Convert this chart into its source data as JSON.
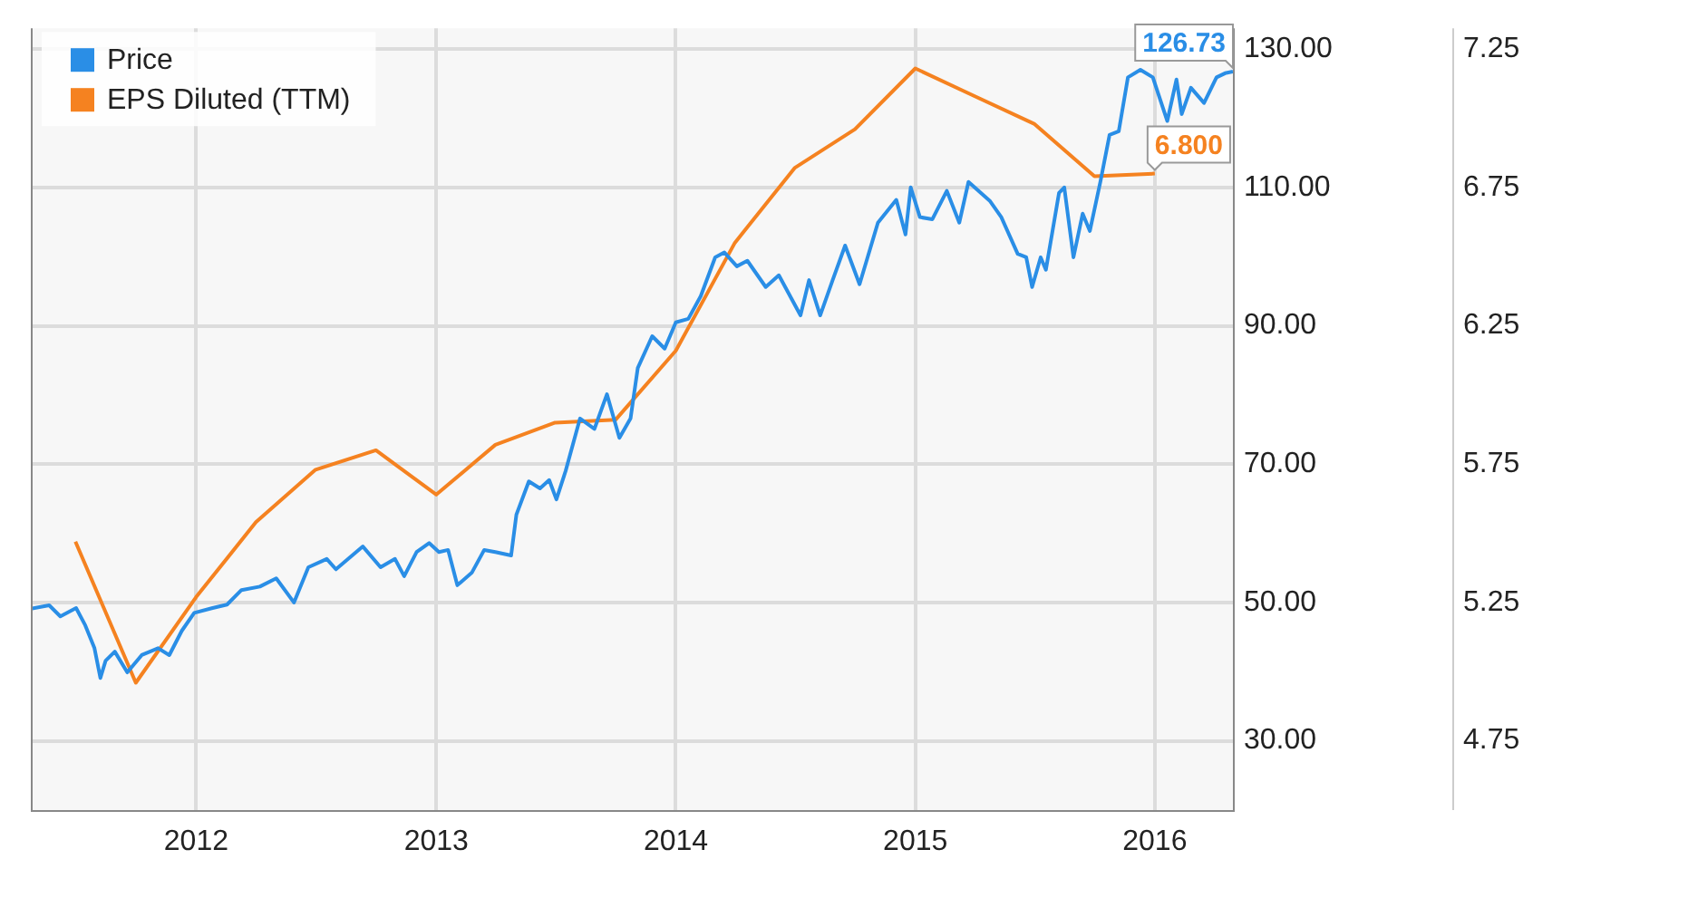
{
  "chart_data": {
    "type": "line",
    "xlim": [
      "2011-04-24",
      "2016-04-29"
    ],
    "xticks": [
      "2012",
      "2013",
      "2014",
      "2015",
      "2016"
    ],
    "ylim": [
      20,
      133
    ],
    "yticks": [
      {
        "value": 30,
        "label": "30.00"
      },
      {
        "value": 50,
        "label": "50.00"
      },
      {
        "value": 70,
        "label": "70.00"
      },
      {
        "value": 90,
        "label": "90.00"
      },
      {
        "value": 110,
        "label": "110.00"
      },
      {
        "value": 130,
        "label": "130.00"
      }
    ],
    "y2lim": [
      4.5,
      7.325
    ],
    "y2ticks": [
      4.75,
      5.25,
      5.75,
      6.25,
      6.75,
      7.25
    ],
    "grid": true,
    "legend": "top left",
    "marker": "none",
    "line_style": "solid",
    "series": [
      {
        "name": "Price",
        "color": "#2a8ee6",
        "x": [
          "2011-04-24",
          "2011-05-22",
          "2011-06-08",
          "2011-07-02",
          "2011-07-16",
          "2011-07-30",
          "2011-08-08",
          "2011-08-16",
          "2011-08-30",
          "2011-09-18",
          "2011-10-10",
          "2011-11-04",
          "2011-11-21",
          "2011-12-10",
          "2011-12-29",
          "2012-01-26",
          "2012-02-17",
          "2012-03-10",
          "2012-04-07",
          "2012-05-02",
          "2012-05-29",
          "2012-06-20",
          "2012-07-18",
          "2012-08-01",
          "2012-09-11",
          "2012-10-08",
          "2012-10-30",
          "2012-11-13",
          "2012-12-02",
          "2012-12-21",
          "2013-01-05",
          "2013-01-19",
          "2013-02-02",
          "2013-02-24",
          "2013-03-15",
          "2013-04-01",
          "2013-04-25",
          "2013-05-03",
          "2013-05-22",
          "2013-06-08",
          "2013-06-22",
          "2013-07-03",
          "2013-07-17",
          "2013-08-08",
          "2013-08-30",
          "2013-09-18",
          "2013-10-07",
          "2013-10-24",
          "2013-11-04",
          "2013-11-26",
          "2013-12-15",
          "2014-01-01",
          "2014-01-20",
          "2014-02-08",
          "2014-03-02",
          "2014-03-16",
          "2014-04-04",
          "2014-04-20",
          "2014-05-18",
          "2014-06-07",
          "2014-07-10",
          "2014-07-23",
          "2014-08-09",
          "2014-08-28",
          "2014-09-16",
          "2014-10-08",
          "2014-11-05",
          "2014-12-03",
          "2014-12-17",
          "2014-12-25",
          "2015-01-08",
          "2015-01-27",
          "2015-02-18",
          "2015-03-09",
          "2015-03-23",
          "2015-04-25",
          "2015-05-12",
          "2015-06-06",
          "2015-06-19",
          "2015-06-28",
          "2015-07-11",
          "2015-07-19",
          "2015-08-08",
          "2015-08-16",
          "2015-08-30",
          "2015-09-13",
          "2015-09-24",
          "2015-10-10",
          "2015-10-24",
          "2015-11-07",
          "2015-11-21",
          "2015-12-10",
          "2015-12-29",
          "2016-01-20",
          "2016-02-03",
          "2016-02-11",
          "2016-02-25",
          "2016-03-16",
          "2016-04-04",
          "2016-04-17",
          "2016-04-29"
        ],
        "values": [
          49.1,
          49.6,
          48,
          49.2,
          46.7,
          43.4,
          39.1,
          41.6,
          42.9,
          39.9,
          42.4,
          43.4,
          42.4,
          45.9,
          48.5,
          49.2,
          49.7,
          51.8,
          52.3,
          53.5,
          50,
          55.1,
          56.3,
          54.8,
          58.1,
          55.1,
          56.3,
          53.8,
          57.3,
          58.6,
          57.3,
          57.6,
          52.5,
          54.3,
          57.6,
          57.3,
          56.8,
          62.7,
          67.5,
          66.5,
          67.7,
          64.9,
          69,
          76.6,
          75.1,
          80.1,
          73.8,
          76.6,
          83.9,
          88.5,
          86.7,
          90.5,
          91,
          94.3,
          99.9,
          100.6,
          98.6,
          99.4,
          95.6,
          97.3,
          91.5,
          96.6,
          91.5,
          96.6,
          101.6,
          96,
          104.9,
          108.2,
          103.2,
          110,
          105.7,
          105.4,
          109.5,
          104.9,
          110.8,
          108,
          105.7,
          100.4,
          99.9,
          95.6,
          99.9,
          98.1,
          109.2,
          110,
          99.9,
          106.2,
          103.7,
          110.8,
          117.6,
          118.1,
          125.9,
          127,
          125.9,
          119.6,
          125.6,
          120.6,
          124.4,
          122.2,
          125.9,
          126.5,
          126.73
        ],
        "value_labels": [
          null,
          null,
          null,
          null,
          null,
          null,
          null,
          null,
          null,
          null,
          null,
          null,
          null,
          null,
          null,
          null,
          null,
          null,
          null,
          null,
          null,
          null,
          null,
          null,
          null,
          null,
          null,
          null,
          null,
          null,
          null,
          null,
          null,
          null,
          null,
          null,
          null,
          null,
          null,
          null,
          null,
          null,
          null,
          null,
          null,
          null,
          null,
          null,
          null,
          null,
          null,
          null,
          null,
          null,
          null,
          null,
          null,
          null,
          null,
          null,
          null,
          null,
          null,
          null,
          null,
          null,
          null,
          null,
          null,
          null,
          null,
          null,
          null,
          null,
          null,
          null,
          null,
          null,
          null,
          null,
          null,
          null,
          null,
          null,
          null,
          null,
          null,
          null,
          null,
          null,
          null,
          null,
          null,
          null,
          null,
          null,
          null,
          null,
          null,
          null,
          "126.73"
        ]
      },
      {
        "name": "EPS Diluted (TTM)",
        "color": "#f58220",
        "axis": "y2",
        "x": [
          "2011-07-01",
          "2011-10-01",
          "2012-01-01",
          "2012-04-01",
          "2012-07-01",
          "2012-10-01",
          "2013-01-01",
          "2013-04-01",
          "2013-07-01",
          "2013-10-01",
          "2014-01-01",
          "2014-04-01",
          "2014-07-01",
          "2014-10-01",
          "2015-01-01",
          "2015-04-01",
          "2015-07-01",
          "2015-10-01",
          "2016-01-01"
        ],
        "values": [
          5.47,
          4.96,
          5.27,
          5.54,
          5.73,
          5.8,
          5.64,
          5.82,
          5.9,
          5.91,
          6.16,
          6.55,
          6.82,
          6.96,
          7.18,
          7.08,
          6.98,
          6.79,
          6.8
        ],
        "value_labels": [
          null,
          null,
          null,
          null,
          null,
          null,
          null,
          null,
          null,
          null,
          null,
          null,
          null,
          null,
          null,
          null,
          null,
          null,
          "6.800"
        ]
      }
    ]
  }
}
